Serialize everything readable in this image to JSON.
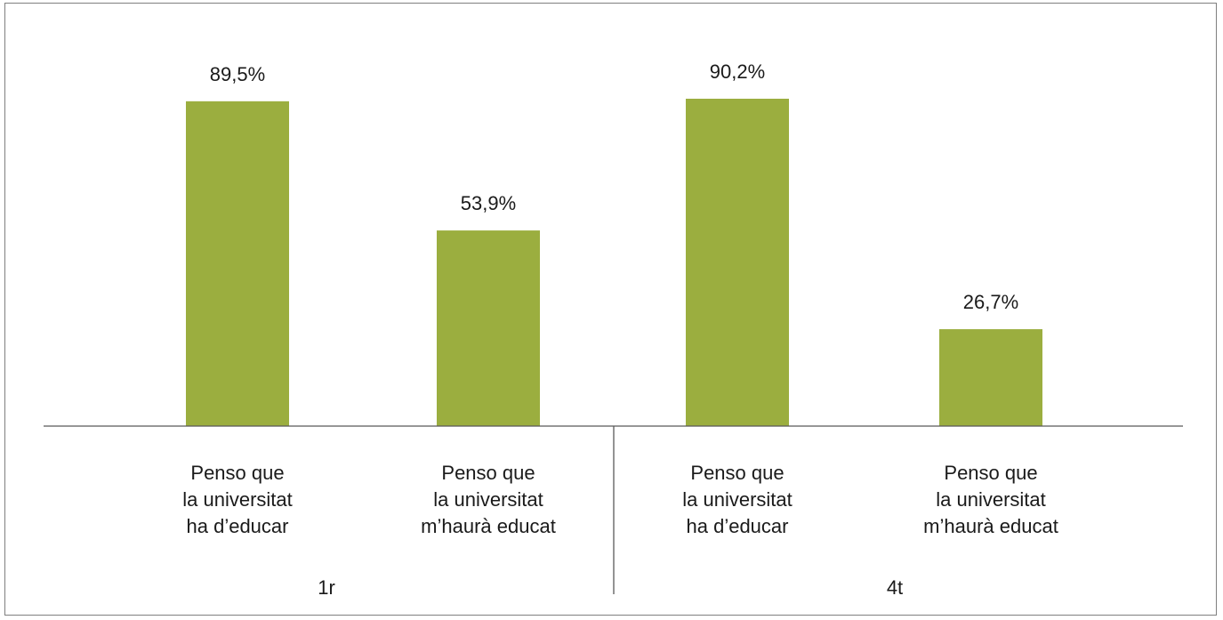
{
  "chart_data": {
    "type": "bar",
    "groups": [
      {
        "label": "1r",
        "categories": [
          {
            "lines": [
              "Penso que",
              "la universitat",
              "ha d’educar"
            ],
            "value": 89.5,
            "label": "89,5%"
          },
          {
            "lines": [
              "Penso que",
              "la universitat",
              "m’haurà educat"
            ],
            "value": 53.9,
            "label": "53,9%"
          }
        ]
      },
      {
        "label": "4t",
        "categories": [
          {
            "lines": [
              "Penso que",
              "la universitat",
              "ha d’educar"
            ],
            "value": 90.2,
            "label": "90,2%"
          },
          {
            "lines": [
              "Penso que",
              "la universitat",
              "m’haurà educat"
            ],
            "value": 26.7,
            "label": "26,7%"
          }
        ]
      }
    ],
    "series": [
      {
        "values": [
          89.5,
          53.9,
          90.2,
          26.7
        ]
      }
    ],
    "ylim": [
      0,
      100
    ],
    "bar_color": "#9bae3f",
    "grid": false,
    "legend": "none"
  }
}
